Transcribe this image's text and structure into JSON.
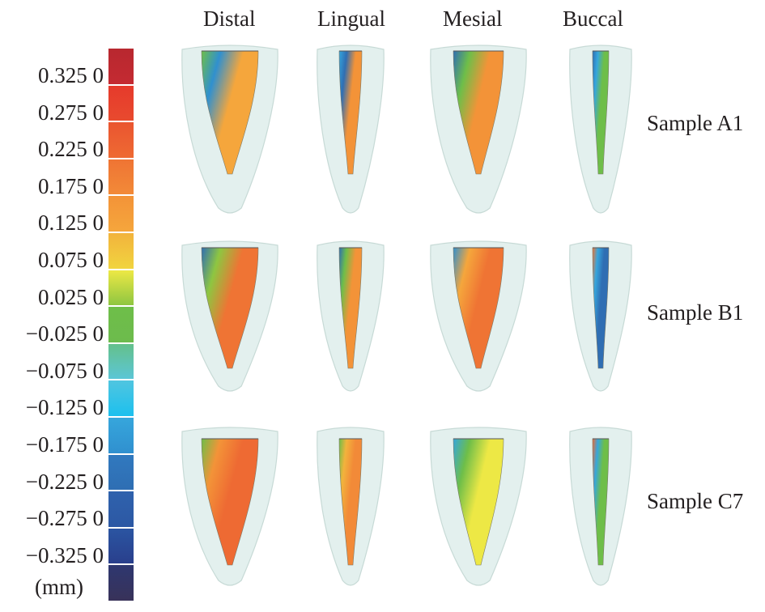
{
  "figure": {
    "column_headers": [
      "Distal",
      "Lingual",
      "Mesial",
      "Buccal"
    ],
    "row_headers": [
      "Sample A1",
      "Sample B1",
      "Sample C7"
    ]
  },
  "colorbar": {
    "unit_label": "(mm)",
    "tick_labels": [
      "0.325 0",
      "0.275 0",
      "0.225 0",
      "0.175 0",
      "0.125 0",
      "0.075 0",
      "0.025 0",
      "−0.025 0",
      "−0.075 0",
      "−0.125 0",
      "−0.175 0",
      "−0.225 0",
      "−0.275 0",
      "−0.325 0"
    ],
    "tick_values": [
      0.325,
      0.275,
      0.225,
      0.175,
      0.125,
      0.075,
      0.025,
      -0.025,
      -0.075,
      -0.125,
      -0.175,
      -0.225,
      -0.275,
      -0.325
    ],
    "segments": [
      {
        "top": "#b8282f",
        "bottom": "#c42a32"
      },
      {
        "top": "#e63a2c",
        "bottom": "#e84a2e"
      },
      {
        "top": "#ea5530",
        "bottom": "#ee6a33"
      },
      {
        "top": "#ef7434",
        "bottom": "#f28a38"
      },
      {
        "top": "#f39338",
        "bottom": "#f5a63c"
      },
      {
        "top": "#f2b33c",
        "bottom": "#f1d43f"
      },
      {
        "top": "#ede845",
        "bottom": "#8ec641"
      },
      {
        "top": "#6ebe49",
        "bottom": "#6dbb4d"
      },
      {
        "top": "#64c08b",
        "bottom": "#5cc6d6"
      },
      {
        "top": "#50c5e0",
        "bottom": "#1cc0ee"
      },
      {
        "top": "#36a6dc",
        "bottom": "#3090cf"
      },
      {
        "top": "#3079bf",
        "bottom": "#2f6eb3"
      },
      {
        "top": "#2f62ad",
        "bottom": "#2c58a4"
      },
      {
        "top": "#2b55a2",
        "bottom": "#293f8c"
      },
      {
        "top": "#2e3770",
        "bottom": "#383259"
      }
    ]
  },
  "panels": [
    {
      "sample": "Sample A1",
      "view": "Distal",
      "dominant": [
        "#f5a63c",
        "#3090cf",
        "#6ebe49"
      ]
    },
    {
      "sample": "Sample A1",
      "view": "Lingual",
      "dominant": [
        "#f39338",
        "#2f6eb3",
        "#36a6dc"
      ]
    },
    {
      "sample": "Sample A1",
      "view": "Mesial",
      "dominant": [
        "#f39338",
        "#6ebe49",
        "#2f6eb3"
      ]
    },
    {
      "sample": "Sample A1",
      "view": "Buccal",
      "dominant": [
        "#6ebe49",
        "#36a6dc",
        "#2f6eb3"
      ]
    },
    {
      "sample": "Sample B1",
      "view": "Distal",
      "dominant": [
        "#ef7434",
        "#8ec641",
        "#2f6eb3"
      ]
    },
    {
      "sample": "Sample B1",
      "view": "Lingual",
      "dominant": [
        "#f39338",
        "#6ebe49",
        "#2f6eb3"
      ]
    },
    {
      "sample": "Sample B1",
      "view": "Mesial",
      "dominant": [
        "#ef7434",
        "#f5a63c",
        "#3090cf"
      ]
    },
    {
      "sample": "Sample B1",
      "view": "Buccal",
      "dominant": [
        "#2f6eb3",
        "#36a6dc",
        "#ef7434"
      ]
    },
    {
      "sample": "Sample C7",
      "view": "Distal",
      "dominant": [
        "#ee6a33",
        "#f39338",
        "#6ebe49"
      ]
    },
    {
      "sample": "Sample C7",
      "view": "Lingual",
      "dominant": [
        "#f28a38",
        "#f2b33c",
        "#6ebe49"
      ]
    },
    {
      "sample": "Sample C7",
      "view": "Mesial",
      "dominant": [
        "#ede845",
        "#6ebe49",
        "#36a6dc"
      ]
    },
    {
      "sample": "Sample C7",
      "view": "Buccal",
      "dominant": [
        "#6ebe49",
        "#36a6dc",
        "#ee6a33"
      ]
    }
  ],
  "colors": {
    "tooth_shell": "#e3f0ee",
    "tooth_outline": "#c7dad6",
    "text": "#231f20"
  }
}
